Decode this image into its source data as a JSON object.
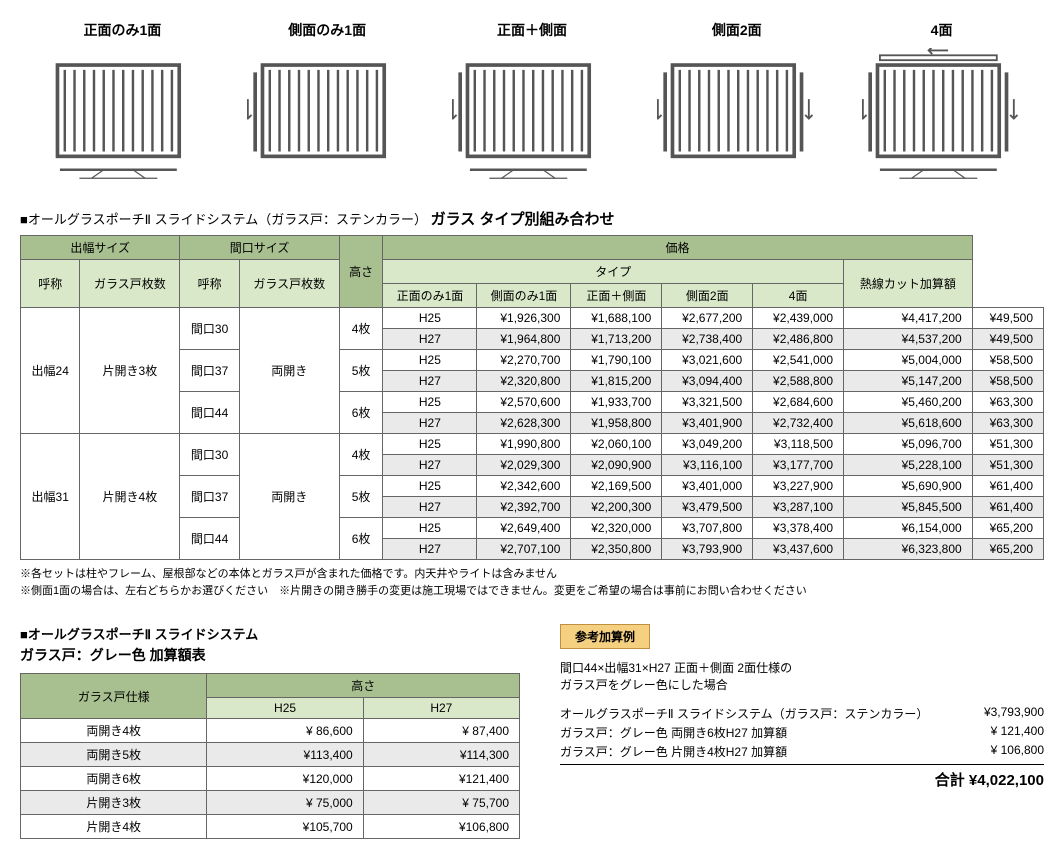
{
  "diagrams": [
    {
      "label": "正面のみ1面"
    },
    {
      "label": "側面のみ1面"
    },
    {
      "label": "正面＋側面"
    },
    {
      "label": "側面2面"
    },
    {
      "label": "4面"
    }
  ],
  "mainTitle": {
    "prefix": "■オールグラスポーチⅡ スライドシステム（ガラス戸：ステンカラー）",
    "bold": "ガラス タイプ別組み合わせ"
  },
  "mainTable": {
    "headers": {
      "dehaba": "出幅サイズ",
      "maguchi": "間口サイズ",
      "takasa": "高さ",
      "kakaku": "価格",
      "type": "タイプ",
      "nessen": "熱線カット加算額",
      "yobi": "呼称",
      "glass_maisu": "ガラス戸枚数",
      "glass_door_maisu": "ガラス戸枚数",
      "types": [
        "正面のみ1面",
        "側面のみ1面",
        "正面＋側面",
        "側面2面",
        "4面"
      ]
    },
    "groups": [
      {
        "dehaba": "出幅24",
        "hiraki": "片開き3枚",
        "maguchi_hiraki": "両開き",
        "rows": [
          {
            "maguchi": "間口30",
            "maisu": "4枚",
            "sub": [
              {
                "h": "H25",
                "p": [
                  "¥1,926,300",
                  "¥1,688,100",
                  "¥2,677,200",
                  "¥2,439,000",
                  "¥4,417,200"
                ],
                "n": "¥49,500",
                "alt": false
              },
              {
                "h": "H27",
                "p": [
                  "¥1,964,800",
                  "¥1,713,200",
                  "¥2,738,400",
                  "¥2,486,800",
                  "¥4,537,200"
                ],
                "n": "¥49,500",
                "alt": true
              }
            ]
          },
          {
            "maguchi": "間口37",
            "maisu": "5枚",
            "sub": [
              {
                "h": "H25",
                "p": [
                  "¥2,270,700",
                  "¥1,790,100",
                  "¥3,021,600",
                  "¥2,541,000",
                  "¥5,004,000"
                ],
                "n": "¥58,500",
                "alt": false
              },
              {
                "h": "H27",
                "p": [
                  "¥2,320,800",
                  "¥1,815,200",
                  "¥3,094,400",
                  "¥2,588,800",
                  "¥5,147,200"
                ],
                "n": "¥58,500",
                "alt": true
              }
            ]
          },
          {
            "maguchi": "間口44",
            "maisu": "6枚",
            "sub": [
              {
                "h": "H25",
                "p": [
                  "¥2,570,600",
                  "¥1,933,700",
                  "¥3,321,500",
                  "¥2,684,600",
                  "¥5,460,200"
                ],
                "n": "¥63,300",
                "alt": false
              },
              {
                "h": "H27",
                "p": [
                  "¥2,628,300",
                  "¥1,958,800",
                  "¥3,401,900",
                  "¥2,732,400",
                  "¥5,618,600"
                ],
                "n": "¥63,300",
                "alt": true
              }
            ]
          }
        ]
      },
      {
        "dehaba": "出幅31",
        "hiraki": "片開き4枚",
        "maguchi_hiraki": "両開き",
        "rows": [
          {
            "maguchi": "間口30",
            "maisu": "4枚",
            "sub": [
              {
                "h": "H25",
                "p": [
                  "¥1,990,800",
                  "¥2,060,100",
                  "¥3,049,200",
                  "¥3,118,500",
                  "¥5,096,700"
                ],
                "n": "¥51,300",
                "alt": false
              },
              {
                "h": "H27",
                "p": [
                  "¥2,029,300",
                  "¥2,090,900",
                  "¥3,116,100",
                  "¥3,177,700",
                  "¥5,228,100"
                ],
                "n": "¥51,300",
                "alt": true
              }
            ]
          },
          {
            "maguchi": "間口37",
            "maisu": "5枚",
            "sub": [
              {
                "h": "H25",
                "p": [
                  "¥2,342,600",
                  "¥2,169,500",
                  "¥3,401,000",
                  "¥3,227,900",
                  "¥5,690,900"
                ],
                "n": "¥61,400",
                "alt": false
              },
              {
                "h": "H27",
                "p": [
                  "¥2,392,700",
                  "¥2,200,300",
                  "¥3,479,500",
                  "¥3,287,100",
                  "¥5,845,500"
                ],
                "n": "¥61,400",
                "alt": true
              }
            ]
          },
          {
            "maguchi": "間口44",
            "maisu": "6枚",
            "sub": [
              {
                "h": "H25",
                "p": [
                  "¥2,649,400",
                  "¥2,320,000",
                  "¥3,707,800",
                  "¥3,378,400",
                  "¥6,154,000"
                ],
                "n": "¥65,200",
                "alt": false
              },
              {
                "h": "H27",
                "p": [
                  "¥2,707,100",
                  "¥2,350,800",
                  "¥3,793,900",
                  "¥3,437,600",
                  "¥6,323,800"
                ],
                "n": "¥65,200",
                "alt": true
              }
            ]
          }
        ]
      }
    ]
  },
  "notes": [
    "※各セットは柱やフレーム、屋根部などの本体とガラス戸が含まれた価格です。内天井やライトは含みません",
    "※側面1面の場合は、左右どちらかお選びください　※片開きの開き勝手の変更は施工現場ではできません。変更をご希望の場合は事前にお問い合わせください"
  ],
  "section2": {
    "title1": "■オールグラスポーチⅡ スライドシステム",
    "title2": "ガラス戸：グレー色 加算額表",
    "headers": {
      "spec": "ガラス戸仕様",
      "takasa": "高さ",
      "h25": "H25",
      "h27": "H27"
    },
    "rows": [
      {
        "spec": "両開き4枚",
        "h25": "¥ 86,600",
        "h27": "¥ 87,400",
        "alt": false
      },
      {
        "spec": "両開き5枚",
        "h25": "¥113,400",
        "h27": "¥114,300",
        "alt": true
      },
      {
        "spec": "両開き6枚",
        "h25": "¥120,000",
        "h27": "¥121,400",
        "alt": false
      },
      {
        "spec": "片開き3枚",
        "h25": "¥ 75,000",
        "h27": "¥ 75,700",
        "alt": true
      },
      {
        "spec": "片開き4枚",
        "h25": "¥105,700",
        "h27": "¥106,800",
        "alt": false
      }
    ]
  },
  "example": {
    "header": "参考加算例",
    "desc1": "間口44×出幅31×H27 正面＋側面 2面仕様の",
    "desc2": "ガラス戸をグレー色にした場合",
    "lines": [
      {
        "label": "オールグラスポーチⅡ スライドシステム（ガラス戸：ステンカラー）",
        "price": "¥3,793,900"
      },
      {
        "label": "ガラス戸：グレー色 両開き6枚H27 加算額",
        "price": "¥ 121,400"
      },
      {
        "label": "ガラス戸：グレー色 片開き4枚H27 加算額",
        "price": "¥ 106,800"
      }
    ],
    "total_label": "合計",
    "total": "¥4,022,100"
  }
}
